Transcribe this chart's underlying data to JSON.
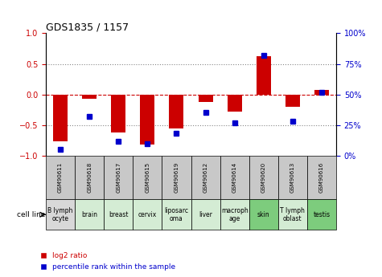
{
  "title": "GDS1835 / 1157",
  "samples": [
    "GSM90611",
    "GSM90618",
    "GSM90617",
    "GSM90615",
    "GSM90619",
    "GSM90612",
    "GSM90614",
    "GSM90620",
    "GSM90613",
    "GSM90616"
  ],
  "cell_lines": [
    "B lymph\nocyte",
    "brain",
    "breast",
    "cervix",
    "liposarc\noma",
    "liver",
    "macroph\nage",
    "skin",
    "T lymph\noblast",
    "testis"
  ],
  "sample_box_color": "#c8c8c8",
  "cell_line_colors": [
    "#d8d8d8",
    "#d4ecd4",
    "#d4ecd4",
    "#d4ecd4",
    "#d4ecd4",
    "#d4ecd4",
    "#d4ecd4",
    "#7dcc7d",
    "#d4ecd4",
    "#7dcc7d"
  ],
  "log2_ratio": [
    -0.77,
    -0.07,
    -0.62,
    -0.82,
    -0.55,
    -0.12,
    -0.28,
    0.63,
    -0.2,
    0.07
  ],
  "percentile_rank": [
    5,
    32,
    12,
    10,
    18,
    35,
    27,
    82,
    28,
    52
  ],
  "ylim_left": [
    -1,
    1
  ],
  "ylim_right": [
    0,
    100
  ],
  "yticks_left": [
    -1,
    -0.5,
    0,
    0.5,
    1
  ],
  "yticks_right": [
    0,
    25,
    50,
    75,
    100
  ],
  "ytick_labels_right": [
    "0%",
    "25%",
    "50%",
    "75%",
    "100%"
  ],
  "bar_color": "#cc0000",
  "dot_color": "#0000cc",
  "hline_color": "#cc0000",
  "dotted_color": "#888888",
  "legend_red": "log2 ratio",
  "legend_blue": "percentile rank within the sample",
  "cell_line_label": "cell line",
  "background_color": "#ffffff",
  "bar_width": 0.5
}
